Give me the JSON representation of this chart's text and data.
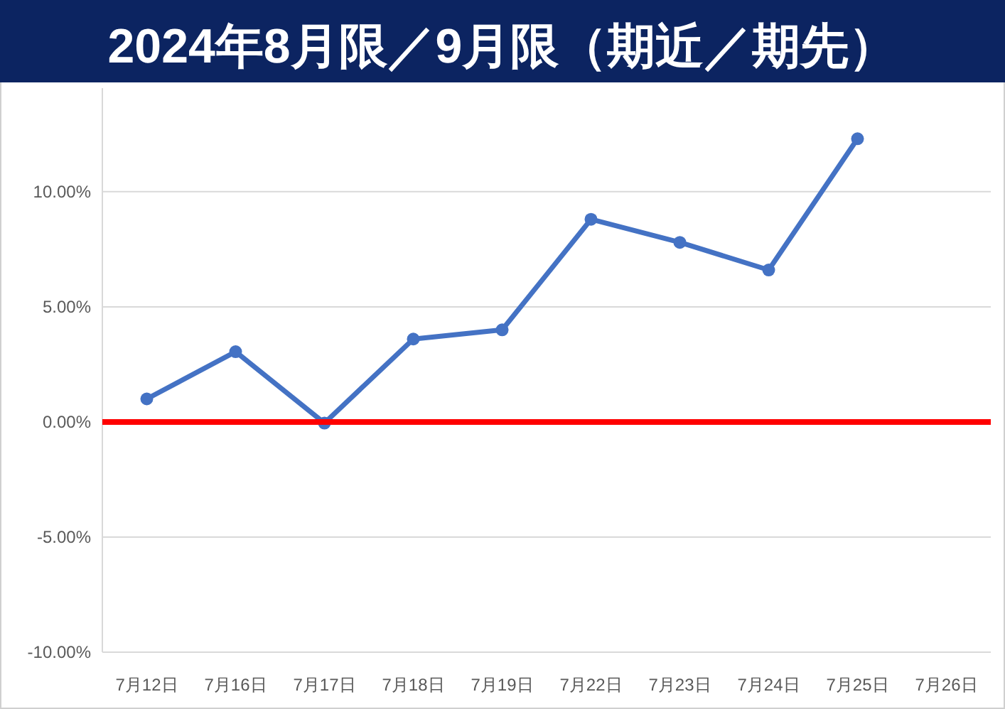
{
  "chart_data": {
    "type": "line",
    "title": "2024年8月限／9月限（期近／期先）",
    "categories": [
      "7月12日",
      "7月16日",
      "7月17日",
      "7月18日",
      "7月19日",
      "7月22日",
      "7月23日",
      "7月24日",
      "7月25日",
      "7月26日"
    ],
    "series": [
      {
        "color": "#4472c4",
        "values": [
          1.0,
          3.05,
          -0.05,
          3.6,
          4.0,
          8.8,
          7.8,
          6.6,
          12.3,
          null
        ]
      }
    ],
    "ylim": [
      -10,
      14.5
    ],
    "yticks": [
      {
        "value": -10,
        "label": "-10.00%"
      },
      {
        "value": -5,
        "label": "-5.00%"
      },
      {
        "value": 0,
        "label": "0.00%"
      },
      {
        "value": 5,
        "label": "5.00%"
      },
      {
        "value": 10,
        "label": "10.00%"
      }
    ],
    "ref_lines": [
      {
        "axis": "y",
        "value": 0,
        "color": "#ff0000"
      }
    ],
    "grid": "y",
    "marker": "circle",
    "line_style": "solid"
  }
}
